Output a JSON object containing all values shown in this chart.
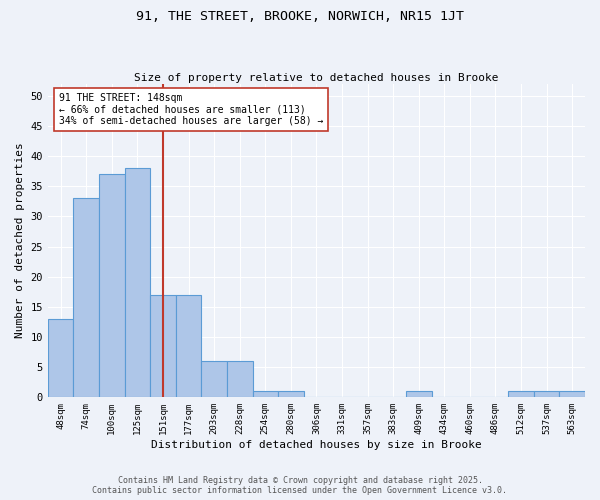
{
  "title1": "91, THE STREET, BROOKE, NORWICH, NR15 1JT",
  "title2": "Size of property relative to detached houses in Brooke",
  "xlabel": "Distribution of detached houses by size in Brooke",
  "ylabel": "Number of detached properties",
  "categories": [
    "48sqm",
    "74sqm",
    "100sqm",
    "125sqm",
    "151sqm",
    "177sqm",
    "203sqm",
    "228sqm",
    "254sqm",
    "280sqm",
    "306sqm",
    "331sqm",
    "357sqm",
    "383sqm",
    "409sqm",
    "434sqm",
    "460sqm",
    "486sqm",
    "512sqm",
    "537sqm",
    "563sqm"
  ],
  "values": [
    13,
    33,
    37,
    38,
    17,
    17,
    6,
    6,
    1,
    1,
    0,
    0,
    0,
    0,
    1,
    0,
    0,
    0,
    1,
    1,
    1
  ],
  "bar_color": "#aec6e8",
  "bar_edge_color": "#5b9bd5",
  "ylim": [
    0,
    52
  ],
  "yticks": [
    0,
    5,
    10,
    15,
    20,
    25,
    30,
    35,
    40,
    45,
    50
  ],
  "vline_x": 4.0,
  "vline_color": "#c0392b",
  "annotation_text": "91 THE STREET: 148sqm\n← 66% of detached houses are smaller (113)\n34% of semi-detached houses are larger (58) →",
  "annotation_box_color": "#ffffff",
  "annotation_box_edge": "#c0392b",
  "footer1": "Contains HM Land Registry data © Crown copyright and database right 2025.",
  "footer2": "Contains public sector information licensed under the Open Government Licence v3.0.",
  "bg_color": "#eef2f9",
  "grid_color": "#ffffff"
}
